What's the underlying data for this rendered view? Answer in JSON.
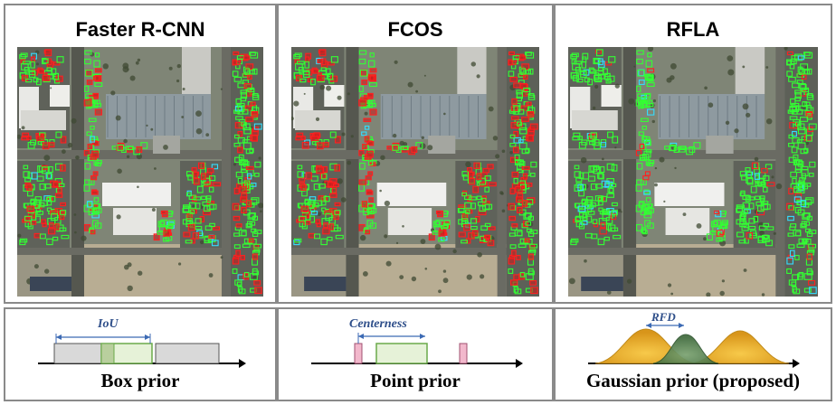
{
  "columns": [
    {
      "title": "Faster R-CNN",
      "prior_label": "Box prior",
      "metric_label": "IoU"
    },
    {
      "title": "FCOS",
      "prior_label": "Point prior",
      "metric_label": "Centerness"
    },
    {
      "title": "RFLA",
      "prior_label": "Gaussian prior (proposed)",
      "metric_label": "RFD"
    }
  ],
  "colors": {
    "true_positive": "#33ff33",
    "false_positive": "#ff2020",
    "missed": "#33ddff",
    "box_fill": "#d9d9d9",
    "green_fill": "#e6f2d8",
    "pink_fill": "#f2b8cc",
    "gaussian_yellow": "#f2b12a",
    "gaussian_green": "#5a8a55",
    "arrow_blue": "#3c6ab4"
  }
}
